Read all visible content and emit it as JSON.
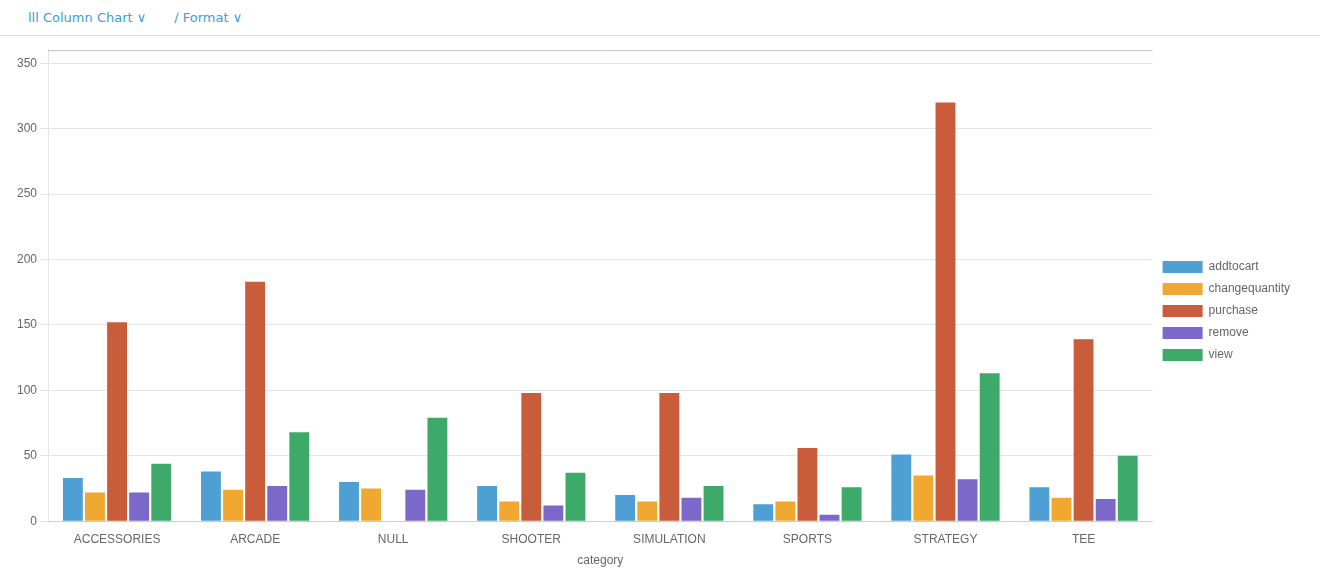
{
  "chart_data": {
    "type": "bar",
    "annotations": [
      "lll Column Chart ∨",
      "∕ Format ∨"
    ],
    "categories": [
      "ACCESSORIES",
      "ARCADE",
      "NULL",
      "SHOOTER",
      "SIMULATION",
      "SPORTS",
      "STRATEGY",
      "TEE"
    ],
    "series": [
      {
        "name": "addtocart",
        "color": "#4E9FD4",
        "values": [
          33,
          38,
          30,
          27,
          20,
          13,
          51,
          26
        ]
      },
      {
        "name": "changequantity",
        "color": "#F0A830",
        "values": [
          22,
          24,
          25,
          15,
          15,
          15,
          35,
          18
        ]
      },
      {
        "name": "purchase",
        "color": "#C95C3A",
        "values": [
          152,
          183,
          0,
          98,
          98,
          56,
          320,
          139
        ]
      },
      {
        "name": "remove",
        "color": "#7B68C8",
        "values": [
          22,
          27,
          24,
          12,
          18,
          5,
          32,
          17
        ]
      },
      {
        "name": "view",
        "color": "#3DAA6A",
        "values": [
          44,
          68,
          79,
          37,
          27,
          26,
          113,
          50
        ]
      }
    ],
    "xlabel": "category",
    "ylim": [
      0,
      360
    ],
    "yticks": [
      0,
      50,
      100,
      150,
      200,
      250,
      300,
      350
    ],
    "grid": true,
    "legend": "right"
  }
}
